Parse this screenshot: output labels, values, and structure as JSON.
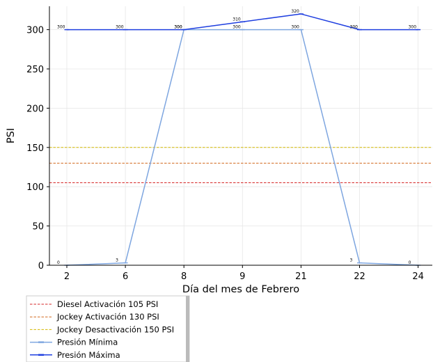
{
  "chart_data": {
    "type": "line",
    "x_categories": [
      "2",
      "6",
      "8",
      "9",
      "21",
      "22",
      "24"
    ],
    "xlabel": "Día del mes de  Febrero",
    "ylabel": "PSI",
    "ylim": [
      0,
      330
    ],
    "yticks": [
      0,
      50,
      100,
      150,
      200,
      250,
      300
    ],
    "grid": true,
    "legend_position": "bottom-left, below axes",
    "series": [
      {
        "name": "Presión Mínima",
        "values": [
          0,
          3,
          300,
          300,
          300,
          3,
          0
        ],
        "labels": [
          "0",
          "3",
          "300",
          "300",
          "300",
          "3",
          "0"
        ],
        "color": "#7ea6e0",
        "marker": "line"
      },
      {
        "name": "Presión Máxima",
        "values": [
          300,
          300,
          300,
          310,
          320,
          300,
          300
        ],
        "labels": [
          "300",
          "300",
          "300",
          "310",
          "320",
          "300",
          "300"
        ],
        "color": "#1f3fe0",
        "marker": "line"
      }
    ],
    "reference_lines": [
      {
        "name": "Diesel Activación 105 PSI",
        "value": 105,
        "color": "#d62728",
        "style": "dashed"
      },
      {
        "name": "Jockey Activación 130 PSI",
        "value": 130,
        "color": "#d2691e",
        "style": "dashed"
      },
      {
        "name": "Jockey Desactivación 150 PSI",
        "value": 150,
        "color": "#d4b800",
        "style": "dashed"
      }
    ]
  }
}
